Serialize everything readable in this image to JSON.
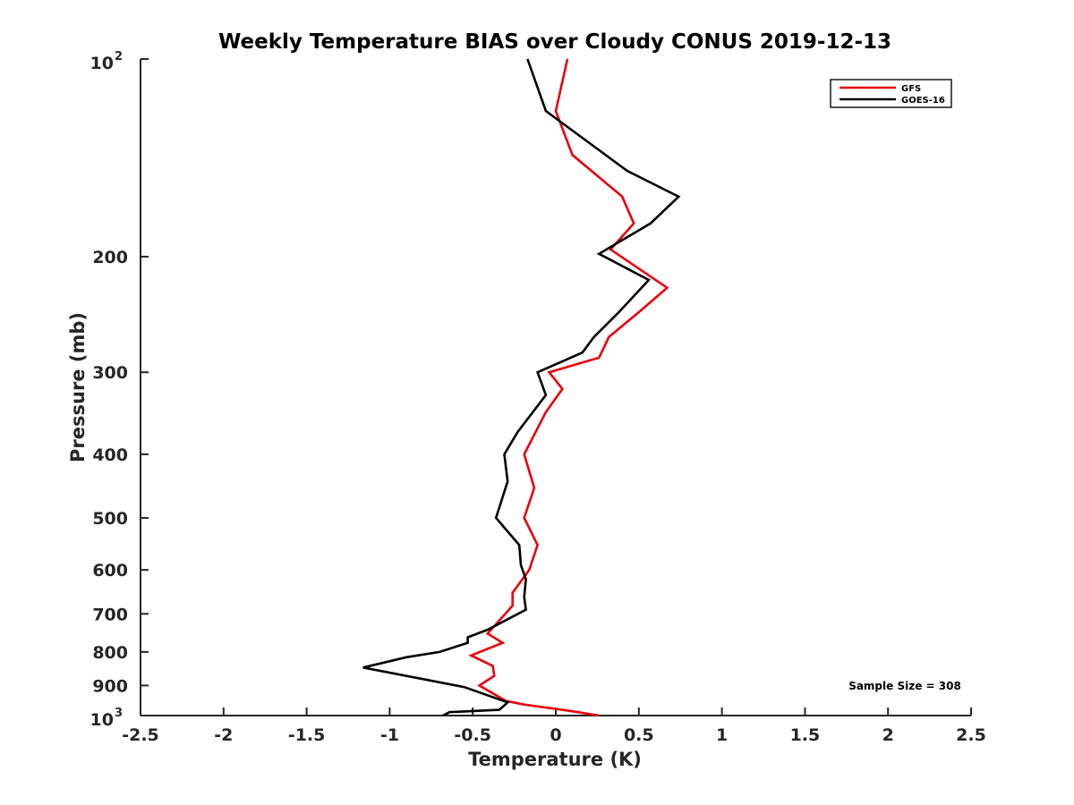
{
  "chart_data": {
    "type": "line",
    "title": "Weekly Temperature BIAS over Cloudy CONUS 2019-12-13",
    "xlabel": "Temperature (K)",
    "ylabel": "Pressure (mb)",
    "xlim": [
      -2.5,
      2.5
    ],
    "ylim": [
      100,
      1000
    ],
    "y_scale": "log",
    "y_direction": "reversed",
    "x_ticks": [
      "-2.5",
      "-2",
      "-1.5",
      "-1",
      "-0.5",
      "0",
      "0.5",
      "1",
      "1.5",
      "2",
      "2.5"
    ],
    "x_tick_values": [
      -2.5,
      -2,
      -1.5,
      -1,
      -0.5,
      0,
      0.5,
      1,
      1.5,
      2,
      2.5
    ],
    "y_ticks": [
      {
        "value": 100,
        "base": "10",
        "exp": "2"
      },
      {
        "value": 200,
        "label": "200"
      },
      {
        "value": 300,
        "label": "300"
      },
      {
        "value": 400,
        "label": "400"
      },
      {
        "value": 500,
        "label": "500"
      },
      {
        "value": 600,
        "label": "600"
      },
      {
        "value": 700,
        "label": "700"
      },
      {
        "value": 800,
        "label": "800"
      },
      {
        "value": 900,
        "label": "900"
      },
      {
        "value": 1000,
        "base": "10",
        "exp": "3"
      }
    ],
    "grid": false,
    "legend_position": "top-right",
    "annotation": "Sample Size = 308",
    "series": [
      {
        "name": "GFS",
        "color": "#e8000b",
        "points": [
          [
            0.07,
            100
          ],
          [
            0.0,
            120
          ],
          [
            0.1,
            140
          ],
          [
            0.4,
            162
          ],
          [
            0.47,
            178
          ],
          [
            0.33,
            195
          ],
          [
            0.67,
            223
          ],
          [
            0.5,
            243
          ],
          [
            0.32,
            265
          ],
          [
            0.26,
            285
          ],
          [
            -0.04,
            300
          ],
          [
            0.04,
            318
          ],
          [
            -0.06,
            345
          ],
          [
            -0.19,
            400
          ],
          [
            -0.13,
            450
          ],
          [
            -0.19,
            500
          ],
          [
            -0.11,
            550
          ],
          [
            -0.16,
            600
          ],
          [
            -0.26,
            650
          ],
          [
            -0.26,
            680
          ],
          [
            -0.41,
            750
          ],
          [
            -0.32,
            775
          ],
          [
            -0.51,
            810
          ],
          [
            -0.38,
            840
          ],
          [
            -0.37,
            870
          ],
          [
            -0.46,
            900
          ],
          [
            -0.3,
            950
          ],
          [
            -0.19,
            962
          ],
          [
            0.1,
            985
          ],
          [
            0.26,
            1000
          ]
        ]
      },
      {
        "name": "GOES-16",
        "color": "#000000",
        "points": [
          [
            -0.17,
            100
          ],
          [
            -0.06,
            120
          ],
          [
            0.43,
            148
          ],
          [
            0.74,
            162
          ],
          [
            0.57,
            178
          ],
          [
            0.26,
            198
          ],
          [
            0.56,
            217
          ],
          [
            0.38,
            243
          ],
          [
            0.23,
            265
          ],
          [
            0.16,
            280
          ],
          [
            -0.11,
            300
          ],
          [
            -0.06,
            325
          ],
          [
            -0.23,
            370
          ],
          [
            -0.31,
            400
          ],
          [
            -0.29,
            440
          ],
          [
            -0.36,
            500
          ],
          [
            -0.22,
            550
          ],
          [
            -0.21,
            590
          ],
          [
            -0.18,
            620
          ],
          [
            -0.19,
            660
          ],
          [
            -0.18,
            690
          ],
          [
            -0.41,
            740
          ],
          [
            -0.53,
            760
          ],
          [
            -0.53,
            775
          ],
          [
            -0.7,
            800
          ],
          [
            -0.9,
            815
          ],
          [
            -1.16,
            845
          ],
          [
            -0.55,
            905
          ],
          [
            -0.29,
            955
          ],
          [
            -0.34,
            980
          ],
          [
            -0.64,
            988
          ],
          [
            -0.68,
            1000
          ]
        ]
      }
    ]
  }
}
